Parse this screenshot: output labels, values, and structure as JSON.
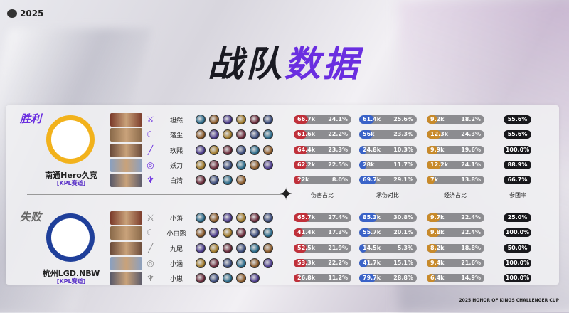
{
  "header": {
    "logo_text": "2025",
    "title_part1": "战队",
    "title_part2": "数据",
    "footer": "2025 HONOR OF KINGS CHALLENGER CUP"
  },
  "colors": {
    "accent": "#6a2ee0",
    "damage": "#c0303a",
    "tank": "#3a63c8",
    "economy": "#c88a2a",
    "kp": "#18181c"
  },
  "columns": {
    "damage": "伤害占比",
    "tank": "承伤对比",
    "economy": "经济占比",
    "kp": "参团率"
  },
  "teams": [
    {
      "result": "胜利",
      "name": "南通Hero久竞",
      "league": "[KPL赛道]",
      "logo_color": "#f2b21c",
      "players": [
        {
          "name": "坦然",
          "role_icon": "clash-lane-icon",
          "items": 6,
          "damage": "66.7k",
          "damage_pct": "24.1%",
          "tank": "61.4k",
          "tank_pct": "25.6%",
          "gold": "9.2k",
          "gold_pct": "18.2%",
          "kp": "55.6%"
        },
        {
          "name": "落尘",
          "role_icon": "jungle-icon",
          "items": 6,
          "damage": "61.6k",
          "damage_pct": "22.2%",
          "tank": "56k",
          "tank_pct": "23.3%",
          "gold": "12.3k",
          "gold_pct": "24.3%",
          "kp": "55.6%"
        },
        {
          "name": "玖熙",
          "role_icon": "mid-lane-icon",
          "items": 6,
          "damage": "64.4k",
          "damage_pct": "23.3%",
          "tank": "24.8k",
          "tank_pct": "10.3%",
          "gold": "9.9k",
          "gold_pct": "19.6%",
          "kp": "100.0%"
        },
        {
          "name": "妖刀",
          "role_icon": "farm-lane-icon",
          "items": 6,
          "damage": "62.2k",
          "damage_pct": "22.5%",
          "tank": "28k",
          "tank_pct": "11.7%",
          "gold": "12.2k",
          "gold_pct": "24.1%",
          "kp": "88.9%"
        },
        {
          "name": "白清",
          "role_icon": "roam-icon",
          "items": 4,
          "damage": "22k",
          "damage_pct": "8.0%",
          "tank": "69.7k",
          "tank_pct": "29.1%",
          "gold": "7k",
          "gold_pct": "13.8%",
          "kp": "66.7%"
        }
      ]
    },
    {
      "result": "失败",
      "name": "杭州LGD.NBW",
      "league": "[KPL赛道]",
      "logo_color": "#1f3f9a",
      "players": [
        {
          "name": "小落",
          "role_icon": "clash-lane-icon",
          "items": 6,
          "damage": "65.7k",
          "damage_pct": "27.4%",
          "tank": "85.3k",
          "tank_pct": "30.8%",
          "gold": "9.7k",
          "gold_pct": "22.4%",
          "kp": "25.0%"
        },
        {
          "name": "小白熊",
          "role_icon": "jungle-icon",
          "items": 6,
          "damage": "41.4k",
          "damage_pct": "17.3%",
          "tank": "55.7k",
          "tank_pct": "20.1%",
          "gold": "9.8k",
          "gold_pct": "22.4%",
          "kp": "100.0%"
        },
        {
          "name": "九尾",
          "role_icon": "mid-lane-icon",
          "items": 6,
          "damage": "52.5k",
          "damage_pct": "21.9%",
          "tank": "14.5k",
          "tank_pct": "5.3%",
          "gold": "8.2k",
          "gold_pct": "18.8%",
          "kp": "50.0%"
        },
        {
          "name": "小涵",
          "role_icon": "farm-lane-icon",
          "items": 6,
          "damage": "53.3k",
          "damage_pct": "22.2%",
          "tank": "41.7k",
          "tank_pct": "15.1%",
          "gold": "9.4k",
          "gold_pct": "21.6%",
          "kp": "100.0%"
        },
        {
          "name": "小崽",
          "role_icon": "roam-icon",
          "items": 5,
          "damage": "26.8k",
          "damage_pct": "11.2%",
          "tank": "79.7k",
          "tank_pct": "28.8%",
          "gold": "6.4k",
          "gold_pct": "14.9%",
          "kp": "100.0%"
        }
      ]
    }
  ]
}
